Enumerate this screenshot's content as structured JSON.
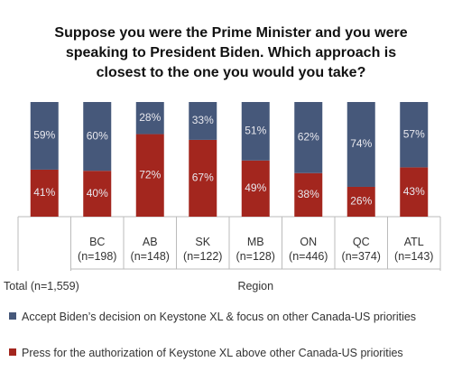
{
  "chart_data": {
    "type": "stacked_bar",
    "title": "Suppose you were the Prime Minister and you were speaking to President Biden. Which approach is closest to the one you would you take?",
    "categories": [
      "Total (n=1,559)",
      "BC (n=198)",
      "AB (n=148)",
      "SK (n=122)",
      "MB (n=128)",
      "ON (n=446)",
      "QC (n=374)",
      "ATL (n=143)"
    ],
    "group_label": "Region",
    "ylim": [
      0,
      100
    ],
    "series": [
      {
        "name": "Press for the authorization of Keystone XL above other Canada-US priorities",
        "color": "#a3261e",
        "values": [
          41,
          40,
          72,
          67,
          49,
          38,
          26,
          43
        ],
        "value_labels": [
          "41%",
          "40%",
          "72%",
          "67%",
          "49%",
          "38%",
          "26%",
          "43%"
        ]
      },
      {
        "name": "Accept Biden’s decision on Keystone XL & focus on other Canada-US priorities",
        "color": "#46587a",
        "values": [
          59,
          60,
          28,
          33,
          51,
          62,
          74,
          57
        ],
        "value_labels": [
          "59%",
          "60%",
          "28%",
          "33%",
          "51%",
          "62%",
          "74%",
          "57%"
        ]
      }
    ]
  }
}
